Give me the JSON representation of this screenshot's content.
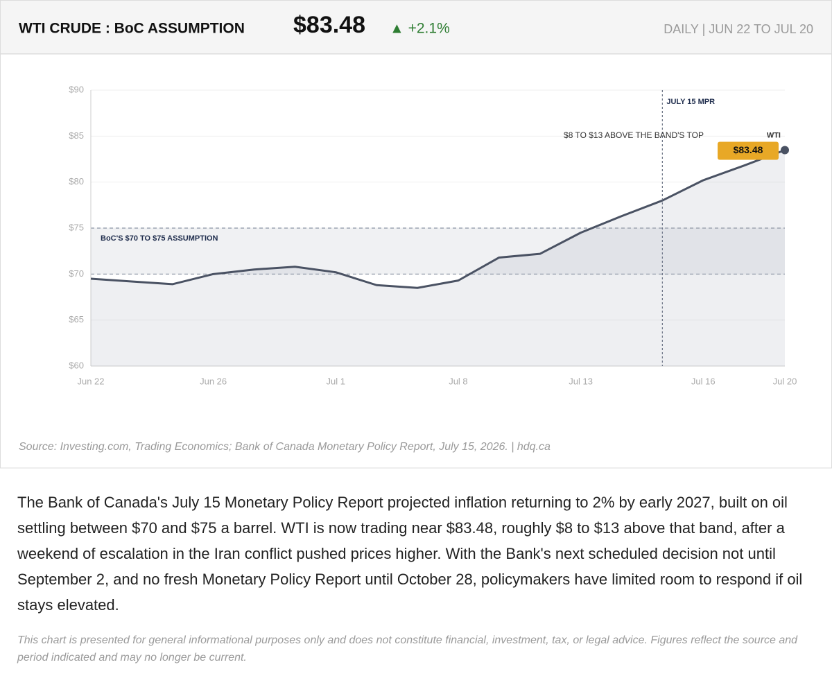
{
  "chart_data": {
    "type": "line",
    "title": "WTI CRUDE : BoC ASSUMPTION",
    "subtitle": "DAILY | JUN 22 TO JUL 20",
    "categories": [
      "Jun 22",
      null,
      null,
      "Jun 26",
      null,
      null,
      "Jul 1",
      null,
      null,
      "Jul 8",
      null,
      null,
      "Jul 13",
      null,
      null,
      "Jul 16",
      null,
      "Jul 20"
    ],
    "series": [
      {
        "name": "WTI",
        "color": "#4a5263",
        "values": [
          69.5,
          69.2,
          68.9,
          70.0,
          70.5,
          70.8,
          70.2,
          68.8,
          68.5,
          69.3,
          71.8,
          72.2,
          74.5,
          76.3,
          78.0,
          80.2,
          81.8,
          83.48
        ],
        "value_labels": [
          null,
          null,
          null,
          null,
          null,
          null,
          null,
          null,
          null,
          null,
          null,
          null,
          null,
          null,
          null,
          null,
          null,
          "$83.48"
        ]
      }
    ],
    "ylim": [
      60,
      90
    ],
    "yticks": [
      {
        "value": 60,
        "label": "$60"
      },
      {
        "value": 65,
        "label": "$65"
      },
      {
        "value": 70,
        "label": "$70"
      },
      {
        "value": 75,
        "label": "$75"
      },
      {
        "value": 80,
        "label": "$80"
      },
      {
        "value": 85,
        "label": "$85"
      },
      {
        "value": 90,
        "label": "$90"
      }
    ],
    "grid": true,
    "band": {
      "from": 70,
      "to": 75,
      "label": "BoC'S $70 TO $75 ASSUMPTION"
    },
    "marker": {
      "x_index": 14,
      "label": "JULY 15 MPR"
    },
    "annotation": "$8 TO $13 ABOVE THE BAND'S TOP"
  },
  "header": {
    "price": "$83.48",
    "change": "▲ +2.1%"
  },
  "source": "Source: Investing.com, Trading Economics; Bank of Canada Monetary Policy Report, July 15, 2026.  |  hdq.ca",
  "body": "The Bank of Canada's July 15 Monetary Policy Report projected inflation returning to 2% by early 2027, built on oil settling between $70 and $75 a barrel. WTI is now trading near $83.48, roughly $8 to $13 above that band, after a weekend of escalation in the Iran conflict pushed prices higher. With the Bank's next scheduled decision not until September 2, and no fresh Monetary Policy Report until October 28, policymakers have limited room to respond if oil stays elevated.",
  "disclaimer": "This chart is presented for general informational purposes only and does not constitute financial, investment, tax, or legal advice. Figures reflect the source and period indicated and may no longer be current."
}
